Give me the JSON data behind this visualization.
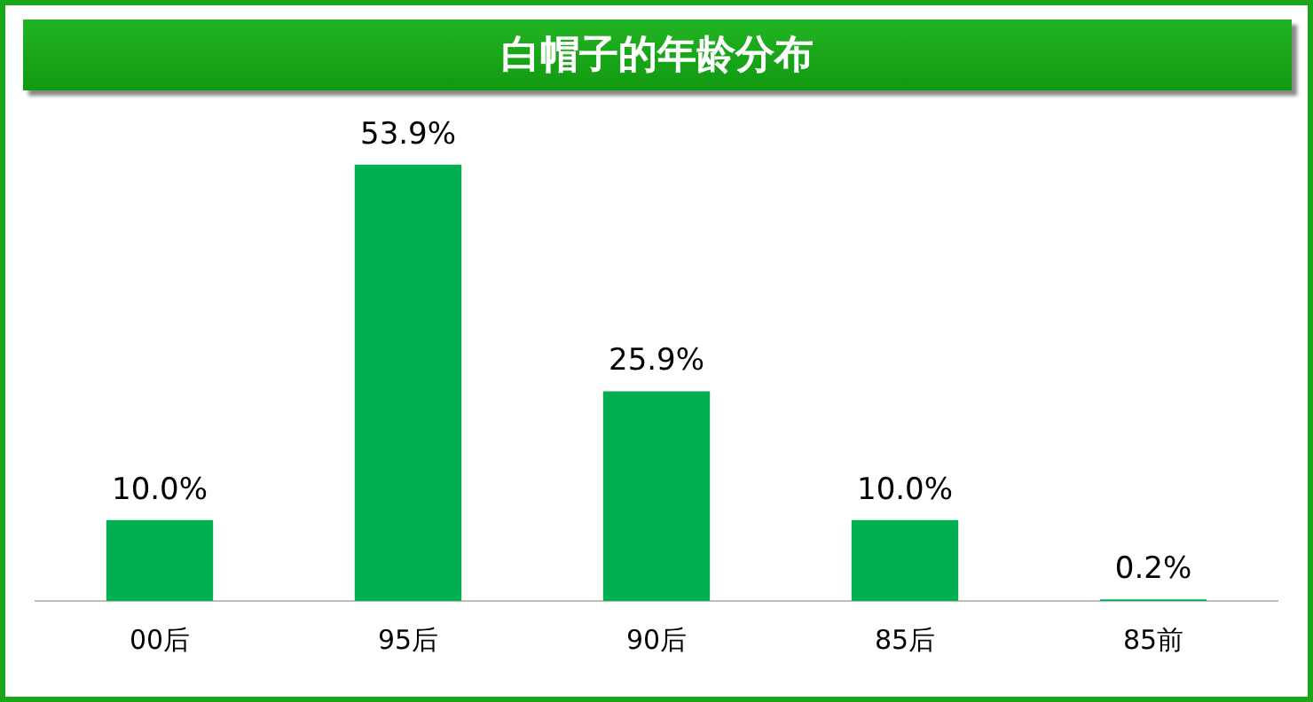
{
  "chart_data": {
    "type": "bar",
    "title": "白帽子的年龄分布",
    "categories": [
      "00后",
      "95后",
      "90后",
      "85后",
      "85前"
    ],
    "values": [
      10.0,
      53.9,
      25.9,
      10.0,
      0.2
    ],
    "value_labels": [
      "10.0%",
      "53.9%",
      "25.9%",
      "10.0%",
      "0.2%"
    ],
    "color": "#00b050",
    "grid": false,
    "legend": false
  }
}
